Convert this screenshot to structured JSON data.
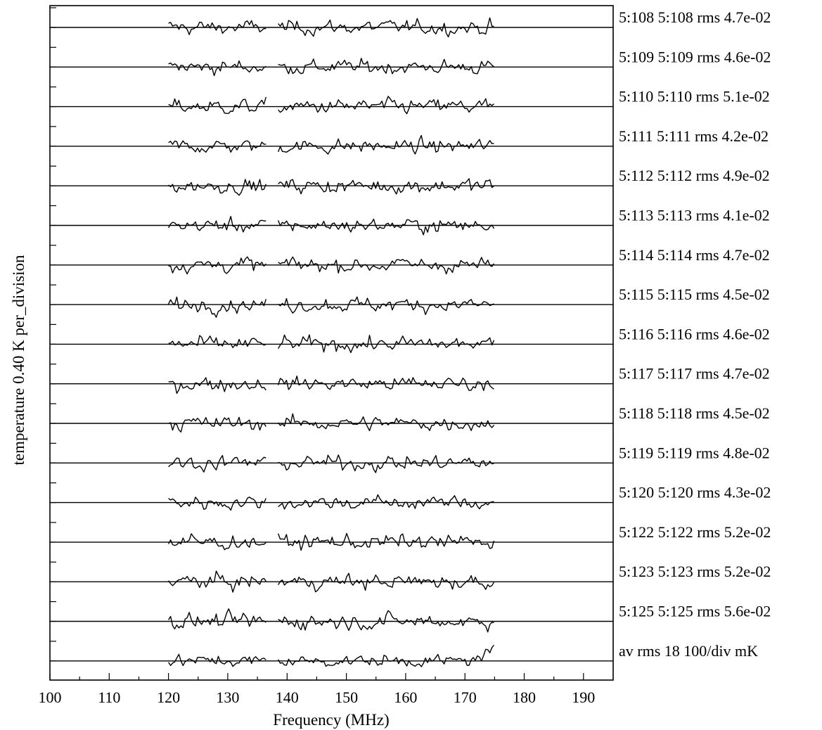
{
  "chart_data": {
    "type": "line",
    "title": "",
    "xlabel": "Frequency (MHz)",
    "ylabel": "temperature   0.40 K  per_division",
    "xlim": [
      100,
      195
    ],
    "x_ticks": [
      100,
      110,
      120,
      130,
      140,
      150,
      160,
      170,
      180,
      190
    ],
    "x_tick_labels": [
      "100",
      "110",
      "120",
      "130",
      "140",
      "150",
      "160",
      "170",
      "180",
      "190"
    ],
    "data_x_range": [
      120,
      175
    ],
    "data_gap": [
      136.5,
      138.5
    ],
    "y_units_per_division": 0.4,
    "y_unit": "K",
    "grid": false,
    "legend": "none",
    "series": [
      {
        "label": "5:108  5:108 rms 4.7e-02",
        "rms": 0.047
      },
      {
        "label": "5:109  5:109 rms 4.6e-02",
        "rms": 0.046
      },
      {
        "label": "5:110  5:110 rms 5.1e-02",
        "rms": 0.051
      },
      {
        "label": "5:111  5:111 rms 4.2e-02",
        "rms": 0.042
      },
      {
        "label": "5:112  5:112 rms 4.9e-02",
        "rms": 0.049
      },
      {
        "label": "5:113  5:113 rms 4.1e-02",
        "rms": 0.041
      },
      {
        "label": "5:114  5:114 rms 4.7e-02",
        "rms": 0.047
      },
      {
        "label": "5:115  5:115 rms 4.5e-02",
        "rms": 0.045
      },
      {
        "label": "5:116  5:116 rms 4.6e-02",
        "rms": 0.046
      },
      {
        "label": "5:117  5:117 rms 4.7e-02",
        "rms": 0.047
      },
      {
        "label": "5:118  5:118 rms 4.5e-02",
        "rms": 0.045
      },
      {
        "label": "5:119  5:119 rms 4.8e-02",
        "rms": 0.048
      },
      {
        "label": "5:120  5:120 rms 4.3e-02",
        "rms": 0.043
      },
      {
        "label": "5:122  5:122 rms 5.2e-02",
        "rms": 0.052
      },
      {
        "label": "5:123  5:123 rms 5.2e-02",
        "rms": 0.052
      },
      {
        "label": "5:125  5:125 rms 5.6e-02",
        "rms": 0.056
      },
      {
        "label": "av  rms   18  100/div mK",
        "rms": 0.018
      }
    ]
  }
}
